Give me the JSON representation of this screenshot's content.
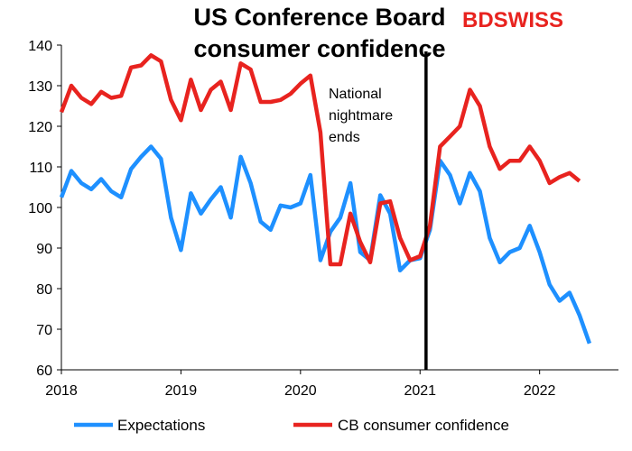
{
  "chart_data": {
    "type": "line",
    "title": [
      "US Conference Board",
      "consumer confidence"
    ],
    "brand": {
      "left": "BD",
      "right": "SWISS",
      "left_color": "#e8231f",
      "right_color": "#e8231f"
    },
    "x_ticks": [
      "2018",
      "2019",
      "2020",
      "2021",
      "2022"
    ],
    "y_ticks": [
      60,
      70,
      80,
      90,
      100,
      110,
      120,
      130,
      140
    ],
    "ylim": [
      60,
      140
    ],
    "xlim": [
      2018.0,
      2022.5
    ],
    "grid": false,
    "legend_position": "bottom",
    "annotation": {
      "text": [
        "National",
        "nightmare",
        "ends"
      ],
      "x": 2021.05
    },
    "series": [
      {
        "name": "Expectations",
        "color": "#1e90ff",
        "values": [
          {
            "x": 2018.0,
            "y": 102.5
          },
          {
            "x": 2018.083,
            "y": 109.0
          },
          {
            "x": 2018.167,
            "y": 106.0
          },
          {
            "x": 2018.25,
            "y": 104.5
          },
          {
            "x": 2018.333,
            "y": 107.0
          },
          {
            "x": 2018.417,
            "y": 104.0
          },
          {
            "x": 2018.5,
            "y": 102.5
          },
          {
            "x": 2018.583,
            "y": 109.5
          },
          {
            "x": 2018.667,
            "y": 112.5
          },
          {
            "x": 2018.75,
            "y": 115.0
          },
          {
            "x": 2018.833,
            "y": 112.0
          },
          {
            "x": 2018.917,
            "y": 97.5
          },
          {
            "x": 2019.0,
            "y": 89.5
          },
          {
            "x": 2019.083,
            "y": 103.5
          },
          {
            "x": 2019.167,
            "y": 98.5
          },
          {
            "x": 2019.25,
            "y": 102.0
          },
          {
            "x": 2019.333,
            "y": 105.0
          },
          {
            "x": 2019.417,
            "y": 97.5
          },
          {
            "x": 2019.5,
            "y": 112.5
          },
          {
            "x": 2019.583,
            "y": 106.0
          },
          {
            "x": 2019.667,
            "y": 96.5
          },
          {
            "x": 2019.75,
            "y": 94.5
          },
          {
            "x": 2019.833,
            "y": 100.5
          },
          {
            "x": 2019.917,
            "y": 100.0
          },
          {
            "x": 2020.0,
            "y": 101.0
          },
          {
            "x": 2020.083,
            "y": 108.0
          },
          {
            "x": 2020.167,
            "y": 87.0
          },
          {
            "x": 2020.25,
            "y": 94.0
          },
          {
            "x": 2020.333,
            "y": 97.5
          },
          {
            "x": 2020.417,
            "y": 106.0
          },
          {
            "x": 2020.5,
            "y": 89.0
          },
          {
            "x": 2020.583,
            "y": 87.0
          },
          {
            "x": 2020.667,
            "y": 103.0
          },
          {
            "x": 2020.75,
            "y": 98.5
          },
          {
            "x": 2020.833,
            "y": 84.5
          },
          {
            "x": 2020.917,
            "y": 87.0
          },
          {
            "x": 2021.0,
            "y": 87.5
          },
          {
            "x": 2021.083,
            "y": 94.5
          },
          {
            "x": 2021.167,
            "y": 111.5
          },
          {
            "x": 2021.25,
            "y": 108.0
          },
          {
            "x": 2021.333,
            "y": 101.0
          },
          {
            "x": 2021.417,
            "y": 108.5
          },
          {
            "x": 2021.5,
            "y": 104.0
          },
          {
            "x": 2021.583,
            "y": 92.5
          },
          {
            "x": 2021.667,
            "y": 86.5
          },
          {
            "x": 2021.75,
            "y": 89.0
          },
          {
            "x": 2021.833,
            "y": 90.0
          },
          {
            "x": 2021.917,
            "y": 95.5
          },
          {
            "x": 2022.0,
            "y": 89.0
          },
          {
            "x": 2022.083,
            "y": 81.0
          },
          {
            "x": 2022.167,
            "y": 77.0
          },
          {
            "x": 2022.25,
            "y": 79.0
          },
          {
            "x": 2022.333,
            "y": 73.5
          },
          {
            "x": 2022.417,
            "y": 66.5
          }
        ]
      },
      {
        "name": "CB consumer confidence",
        "color": "#e8231f",
        "values": [
          {
            "x": 2018.0,
            "y": 123.5
          },
          {
            "x": 2018.083,
            "y": 130.0
          },
          {
            "x": 2018.167,
            "y": 127.0
          },
          {
            "x": 2018.25,
            "y": 125.5
          },
          {
            "x": 2018.333,
            "y": 128.5
          },
          {
            "x": 2018.417,
            "y": 127.0
          },
          {
            "x": 2018.5,
            "y": 127.5
          },
          {
            "x": 2018.583,
            "y": 134.5
          },
          {
            "x": 2018.667,
            "y": 135.0
          },
          {
            "x": 2018.75,
            "y": 137.5
          },
          {
            "x": 2018.833,
            "y": 136.0
          },
          {
            "x": 2018.917,
            "y": 126.5
          },
          {
            "x": 2019.0,
            "y": 121.5
          },
          {
            "x": 2019.083,
            "y": 131.5
          },
          {
            "x": 2019.167,
            "y": 124.0
          },
          {
            "x": 2019.25,
            "y": 129.0
          },
          {
            "x": 2019.333,
            "y": 131.0
          },
          {
            "x": 2019.417,
            "y": 124.0
          },
          {
            "x": 2019.5,
            "y": 135.5
          },
          {
            "x": 2019.583,
            "y": 134.0
          },
          {
            "x": 2019.667,
            "y": 126.0
          },
          {
            "x": 2019.75,
            "y": 126.0
          },
          {
            "x": 2019.833,
            "y": 126.5
          },
          {
            "x": 2019.917,
            "y": 128.0
          },
          {
            "x": 2020.0,
            "y": 130.5
          },
          {
            "x": 2020.083,
            "y": 132.5
          },
          {
            "x": 2020.167,
            "y": 118.5
          },
          {
            "x": 2020.25,
            "y": 86.0
          },
          {
            "x": 2020.333,
            "y": 86.0
          },
          {
            "x": 2020.417,
            "y": 98.5
          },
          {
            "x": 2020.5,
            "y": 91.5
          },
          {
            "x": 2020.583,
            "y": 86.5
          },
          {
            "x": 2020.667,
            "y": 101.0
          },
          {
            "x": 2020.75,
            "y": 101.5
          },
          {
            "x": 2020.833,
            "y": 92.5
          },
          {
            "x": 2020.917,
            "y": 87.0
          },
          {
            "x": 2021.0,
            "y": 88.0
          },
          {
            "x": 2021.083,
            "y": 95.5
          },
          {
            "x": 2021.167,
            "y": 115.0
          },
          {
            "x": 2021.25,
            "y": 117.5
          },
          {
            "x": 2021.333,
            "y": 120.0
          },
          {
            "x": 2021.417,
            "y": 129.0
          },
          {
            "x": 2021.5,
            "y": 125.0
          },
          {
            "x": 2021.583,
            "y": 115.0
          },
          {
            "x": 2021.667,
            "y": 109.5
          },
          {
            "x": 2021.75,
            "y": 111.5
          },
          {
            "x": 2021.833,
            "y": 111.5
          },
          {
            "x": 2021.917,
            "y": 115.0
          },
          {
            "x": 2022.0,
            "y": 111.5
          },
          {
            "x": 2022.083,
            "y": 106.0
          },
          {
            "x": 2022.167,
            "y": 107.5
          },
          {
            "x": 2022.25,
            "y": 108.5
          },
          {
            "x": 2022.333,
            "y": 106.5
          }
        ]
      }
    ]
  }
}
